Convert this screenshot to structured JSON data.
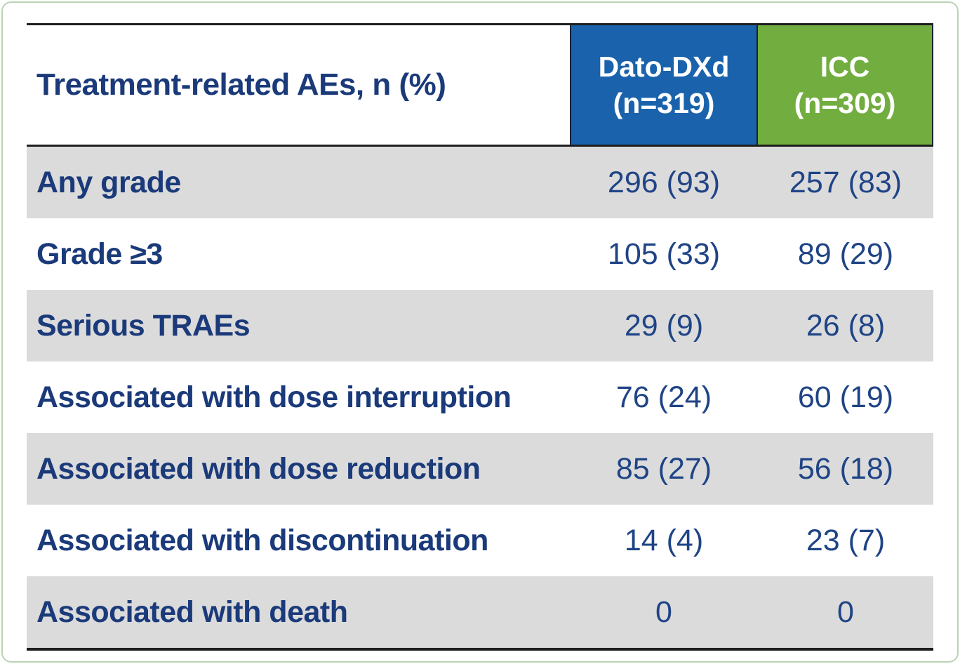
{
  "table": {
    "title_cell": "Treatment-related AEs, n (%)",
    "columns": [
      {
        "name_line1": "Dato-DXd",
        "name_line2": "(n=319)",
        "bg_color": "#1a63ac"
      },
      {
        "name_line1": "ICC",
        "name_line2": "(n=309)",
        "bg_color": "#72ad3f"
      }
    ],
    "rows": [
      {
        "label": "Any grade",
        "dato_dxd": "296 (93)",
        "icc": "257 (83)"
      },
      {
        "label": "Grade ≥3",
        "dato_dxd": "105 (33)",
        "icc": "89 (29)"
      },
      {
        "label": "Serious TRAEs",
        "dato_dxd": "29 (9)",
        "icc": "26 (8)"
      },
      {
        "label": "Associated with dose interruption",
        "dato_dxd": "76 (24)",
        "icc": "60 (19)"
      },
      {
        "label": "Associated with dose reduction",
        "dato_dxd": "85 (27)",
        "icc": "56 (18)"
      },
      {
        "label": "Associated with discontinuation",
        "dato_dxd": "14 (4)",
        "icc": "23 (7)"
      },
      {
        "label": "Associated with death",
        "dato_dxd": "0",
        "icc": "0"
      }
    ],
    "colors": {
      "header_text": "#ffffff",
      "label_text": "#1b3a7a",
      "value_text": "#1f4486",
      "shaded_row_bg": "#dbdbdb",
      "rule_color": "#1f1f1f",
      "frame_border": "#b9d4b2"
    }
  },
  "chart_data": {
    "type": "table",
    "title": "Treatment-related AEs, n (%)",
    "columns": [
      "Treatment-related AEs, n (%)",
      "Dato-DXd (n=319)",
      "ICC (n=309)"
    ],
    "categories": [
      "Any grade",
      "Grade ≥3",
      "Serious TRAEs",
      "Associated with dose interruption",
      "Associated with dose reduction",
      "Associated with discontinuation",
      "Associated with death"
    ],
    "series": [
      {
        "name": "Dato-DXd (n=319)",
        "n": 319,
        "values_n": [
          296,
          105,
          29,
          76,
          85,
          14,
          0
        ],
        "values_pct": [
          93,
          33,
          9,
          24,
          27,
          4,
          0
        ]
      },
      {
        "name": "ICC (n=309)",
        "n": 309,
        "values_n": [
          257,
          89,
          26,
          60,
          56,
          23,
          0
        ],
        "values_pct": [
          83,
          29,
          8,
          19,
          18,
          7,
          0
        ]
      }
    ]
  }
}
